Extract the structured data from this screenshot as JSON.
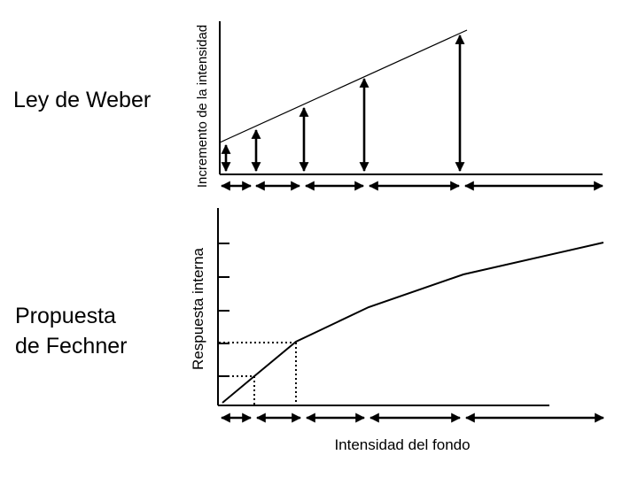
{
  "top_panel": {
    "title": "Ley de Weber",
    "ylabel": "Incremento de la intensidad"
  },
  "bottom_panel": {
    "title_lines": [
      "Propuesta",
      "de Fechner"
    ],
    "ylabel": "Respuesta interna",
    "xlabel": "Intensidad del fondo"
  },
  "colors": {
    "ink": "#000000",
    "background": "#ffffff"
  }
}
